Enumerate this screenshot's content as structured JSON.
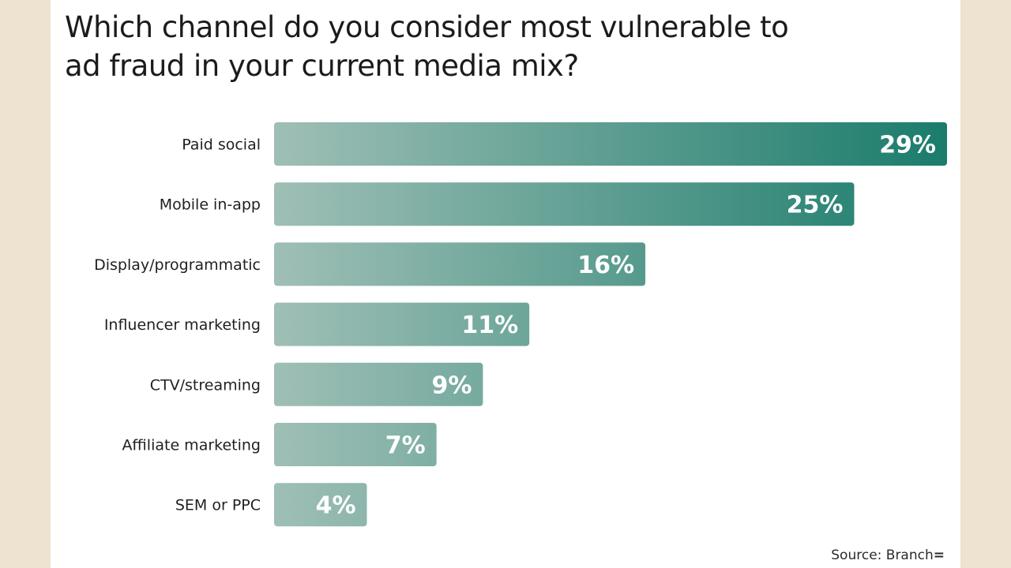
{
  "title_lines": [
    "Which channel do you consider most vulnerable to",
    "ad fraud in your current media mix?"
  ],
  "source": "Source: Branch",
  "colors": {
    "bar_start": "#9fbfb6",
    "bar_end": "#1a7c6b",
    "label_text": "#1f1f1f",
    "value_text": "#ffffff"
  },
  "chart_data": {
    "type": "bar",
    "orientation": "horizontal",
    "title": "Which channel do you consider most vulnerable to ad fraud in your current media mix?",
    "categories": [
      "Paid social",
      "Mobile in-app",
      "Display/programmatic",
      "Influencer marketing",
      "CTV/streaming",
      "Affiliate marketing",
      "SEM or PPC"
    ],
    "values": [
      29,
      25,
      16,
      11,
      9,
      7,
      4
    ],
    "value_labels": [
      "29%",
      "25%",
      "16%",
      "11%",
      "9%",
      "7%",
      "4%"
    ],
    "unit": "%",
    "xlim": [
      0,
      29
    ],
    "grid": false,
    "legend": "none"
  }
}
